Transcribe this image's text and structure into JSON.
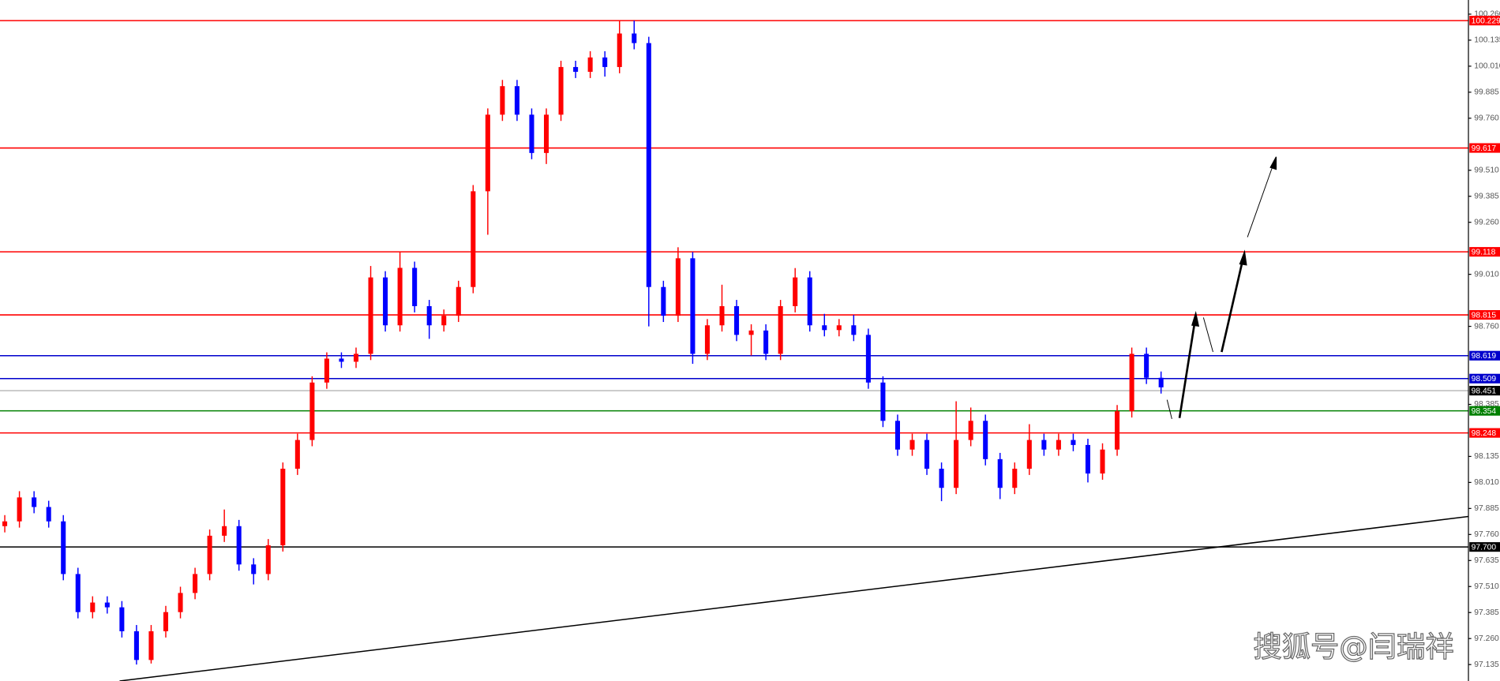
{
  "chart_data": {
    "type": "candlestick",
    "watermark": "搜狐号@闫瑞祥",
    "up_color": "#ff0000",
    "down_color": "#0000ff",
    "ylim": [
      97.056,
      100.328
    ],
    "yticks": [
      {
        "value": 100.26,
        "label": "100.260"
      },
      100.135,
      {
        "value": 100.01,
        "label": "100.010"
      },
      99.885,
      {
        "value": 99.76,
        "label": "99.760"
      },
      {
        "value": 99.51,
        "label": "99.510"
      },
      99.385,
      {
        "value": 99.26,
        "label": "99.260"
      },
      {
        "value": 99.01,
        "label": "99.010"
      },
      {
        "value": 98.76,
        "label": "98.760"
      },
      98.385,
      98.135,
      {
        "value": 98.01,
        "label": "98.010"
      },
      97.885,
      {
        "value": 97.76,
        "label": "97.760"
      },
      97.635,
      {
        "value": 97.51,
        "label": "97.510"
      },
      97.385,
      {
        "value": 97.26,
        "label": "97.260"
      },
      97.135
    ],
    "levels": [
      {
        "value": 100.229,
        "color": "#ff0000"
      },
      {
        "value": 99.617,
        "color": "#ff0000"
      },
      {
        "value": 99.118,
        "color": "#ff0000"
      },
      {
        "value": 98.815,
        "color": "#ff0000"
      },
      {
        "value": 98.619,
        "color": "#0000cc"
      },
      {
        "value": 98.509,
        "color": "#0000cc"
      },
      {
        "value": 98.451,
        "color": "#c0c0c0",
        "tag_color": "#000000"
      },
      {
        "value": 98.354,
        "color": "#008000"
      },
      {
        "value": 98.248,
        "color": "#ff0000"
      },
      {
        "value": {
          "value": 97.7,
          "label": "97.700"
        },
        "color": "#000000"
      }
    ],
    "series": [
      {
        "open": [
          97.8,
          97.823,
          97.938,
          97.892,
          97.823,
          97.57,
          97.387,
          97.433,
          97.41,
          97.295,
          97.157,
          97.295,
          97.387,
          97.479,
          97.57,
          97.754,
          97.8,
          97.616,
          97.57,
          97.708,
          98.076,
          98.214,
          98.49,
          98.605,
          98.59,
          98.628,
          98.995,
          98.765,
          99.041,
          98.857,
          98.765,
          98.811,
          98.949,
          99.409,
          99.777,
          99.914,
          99.777,
          99.593,
          99.777,
          100.006,
          99.983,
          100.052,
          100.006,
          100.167,
          100.121,
          98.949,
          98.811,
          99.087,
          98.628,
          98.765,
          98.857,
          98.719,
          98.74,
          98.628,
          98.857,
          98.995,
          98.765,
          98.742,
          98.765,
          98.719,
          98.49,
          98.306,
          98.168,
          98.214,
          98.076,
          97.984,
          98.214,
          98.306,
          98.122,
          97.984,
          98.076,
          98.214,
          98.168,
          98.214,
          98.19,
          98.053,
          98.168,
          98.352,
          98.628,
          98.513
        ],
        "high": [
          97.853,
          97.968,
          97.968,
          97.922,
          97.853,
          97.6,
          97.463,
          97.463,
          97.44,
          97.325,
          97.325,
          97.417,
          97.509,
          97.6,
          97.784,
          97.88,
          97.83,
          97.646,
          97.738,
          98.106,
          98.244,
          98.52,
          98.635,
          98.635,
          98.658,
          99.05,
          99.025,
          99.118,
          99.071,
          98.887,
          98.841,
          98.979,
          99.439,
          99.807,
          99.944,
          99.944,
          99.807,
          99.807,
          100.036,
          100.036,
          100.082,
          100.082,
          100.229,
          100.229,
          100.151,
          98.979,
          99.14,
          99.117,
          98.795,
          98.96,
          98.887,
          98.77,
          98.77,
          98.887,
          99.04,
          99.025,
          98.82,
          98.795,
          98.815,
          98.749,
          98.52,
          98.336,
          98.244,
          98.244,
          98.106,
          98.4,
          98.37,
          98.336,
          98.152,
          98.106,
          98.29,
          98.244,
          98.244,
          98.244,
          98.22,
          98.198,
          98.382,
          98.658,
          98.658,
          98.543
        ],
        "low": [
          97.77,
          97.793,
          97.862,
          97.793,
          97.54,
          97.357,
          97.357,
          97.38,
          97.265,
          97.135,
          97.14,
          97.265,
          97.357,
          97.449,
          97.54,
          97.724,
          97.586,
          97.52,
          97.54,
          97.678,
          98.046,
          98.184,
          98.46,
          98.56,
          98.56,
          98.598,
          98.735,
          98.735,
          98.827,
          98.7,
          98.735,
          98.781,
          98.919,
          99.2,
          99.747,
          99.747,
          99.563,
          99.54,
          99.747,
          99.953,
          99.953,
          99.96,
          99.976,
          100.091,
          98.76,
          98.781,
          98.781,
          98.58,
          98.598,
          98.735,
          98.689,
          98.62,
          98.598,
          98.598,
          98.827,
          98.735,
          98.712,
          98.712,
          98.689,
          98.46,
          98.276,
          98.138,
          98.138,
          98.046,
          97.92,
          97.954,
          98.184,
          98.092,
          97.93,
          97.954,
          98.046,
          98.138,
          98.138,
          98.16,
          98.01,
          98.023,
          98.138,
          98.322,
          98.483,
          98.437
        ],
        "close": [
          97.823,
          97.938,
          97.892,
          97.823,
          97.57,
          97.387,
          97.433,
          97.41,
          97.295,
          97.157,
          97.295,
          97.387,
          97.479,
          97.57,
          97.754,
          97.8,
          97.616,
          97.57,
          97.708,
          98.076,
          98.214,
          98.49,
          98.605,
          98.59,
          98.628,
          98.995,
          98.765,
          99.041,
          98.857,
          98.765,
          98.811,
          98.949,
          99.409,
          99.777,
          99.914,
          99.777,
          99.593,
          99.777,
          100.006,
          99.983,
          100.052,
          100.006,
          100.167,
          100.121,
          98.949,
          98.811,
          99.087,
          98.628,
          98.765,
          98.857,
          98.719,
          98.74,
          98.628,
          98.857,
          98.995,
          98.765,
          98.742,
          98.765,
          98.719,
          98.49,
          98.306,
          98.168,
          98.214,
          98.076,
          97.984,
          98.214,
          98.306,
          98.122,
          97.984,
          98.076,
          98.214,
          98.168,
          98.214,
          98.19,
          98.053,
          98.168,
          98.352,
          98.628,
          98.513,
          98.467
        ]
      }
    ]
  }
}
